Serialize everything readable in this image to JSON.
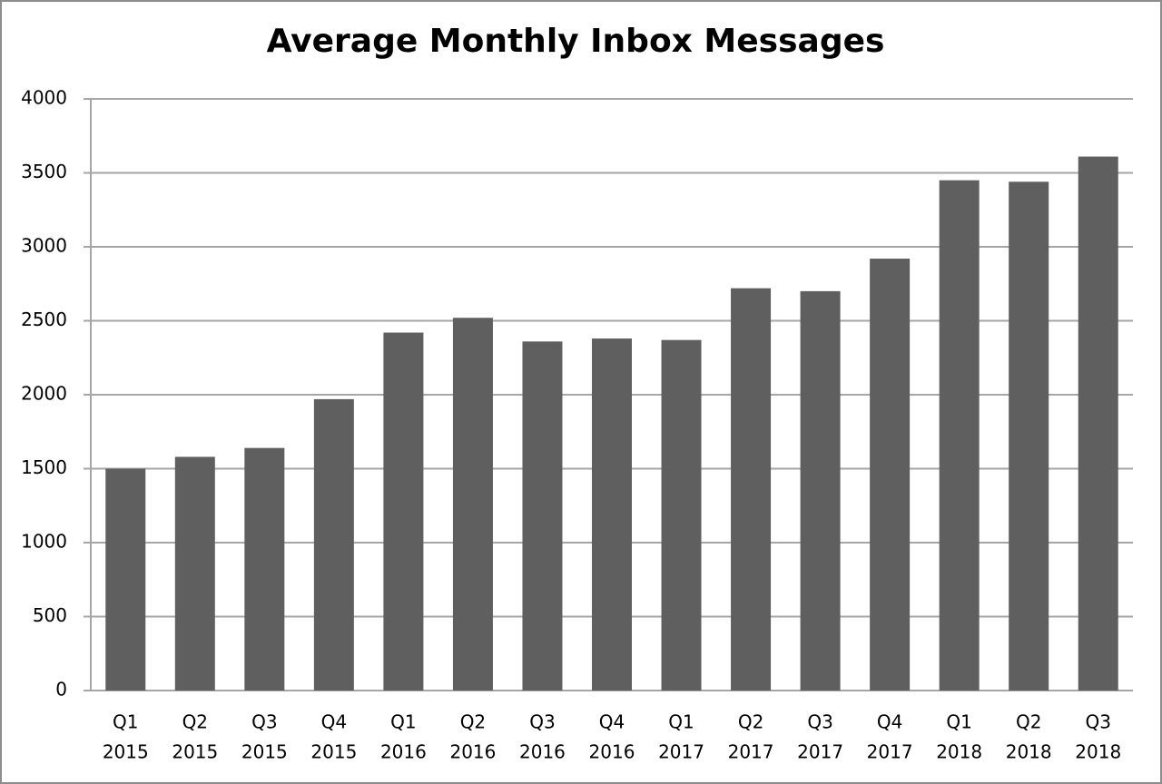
{
  "chart_data": {
    "type": "bar",
    "title": "Average Monthly Inbox Messages",
    "categories": [
      [
        "Q1",
        "2015"
      ],
      [
        "Q2",
        "2015"
      ],
      [
        "Q3",
        "2015"
      ],
      [
        "Q4",
        "2015"
      ],
      [
        "Q1",
        "2016"
      ],
      [
        "Q2",
        "2016"
      ],
      [
        "Q3",
        "2016"
      ],
      [
        "Q4",
        "2016"
      ],
      [
        "Q1",
        "2017"
      ],
      [
        "Q2",
        "2017"
      ],
      [
        "Q3",
        "2017"
      ],
      [
        "Q4",
        "2017"
      ],
      [
        "Q1",
        "2018"
      ],
      [
        "Q2",
        "2018"
      ],
      [
        "Q3",
        "2018"
      ]
    ],
    "values": [
      1500,
      1580,
      1640,
      1970,
      2420,
      2520,
      2360,
      2380,
      2370,
      2720,
      2700,
      2920,
      3450,
      3440,
      3610
    ],
    "color": "#5f5f5f",
    "ylim": [
      0,
      4000
    ],
    "yticks": [
      0,
      500,
      1000,
      1500,
      2000,
      2500,
      3000,
      3500,
      4000
    ],
    "grid": true
  }
}
